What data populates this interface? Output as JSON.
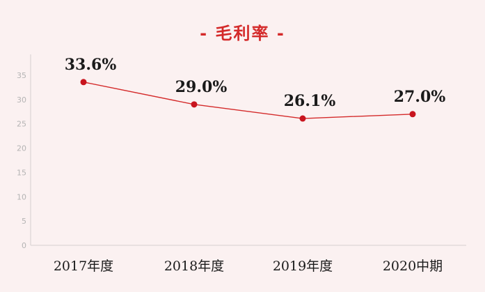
{
  "title": "- 毛利率 -",
  "chart_data": {
    "type": "line",
    "title": "- 毛利率 -",
    "categories": [
      "2017年度",
      "2018年度",
      "2019年度",
      "2020中期"
    ],
    "series": [
      {
        "values": [
          33.6,
          29.0,
          26.1,
          27.0
        ],
        "labels": [
          "33.6%",
          "29.0%",
          "26.1%",
          "27.0%"
        ]
      }
    ],
    "yticks": [
      0,
      5,
      10,
      15,
      20,
      25,
      30,
      35
    ],
    "ylim": [
      0,
      35
    ],
    "xlabel": "",
    "ylabel": "",
    "grid": false,
    "colors": {
      "line": "#d42a2a",
      "marker": "#c8141e",
      "title": "#d42a2a",
      "axis": "#d6d0d0"
    }
  }
}
